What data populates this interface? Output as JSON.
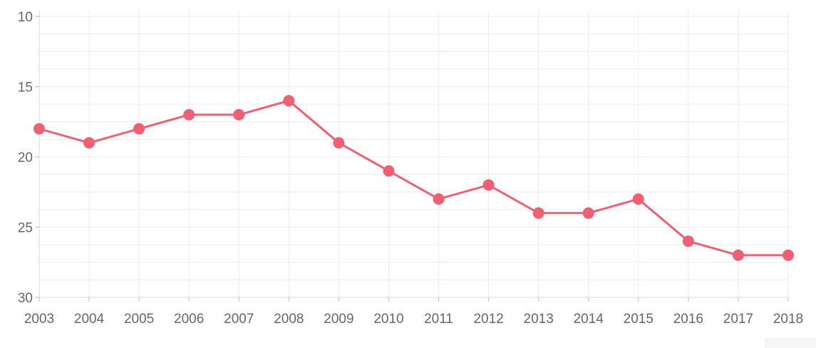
{
  "chart_data": {
    "type": "line",
    "x": [
      "2003",
      "2004",
      "2005",
      "2006",
      "2007",
      "2008",
      "2009",
      "2010",
      "2011",
      "2012",
      "2013",
      "2014",
      "2015",
      "2016",
      "2017",
      "2018"
    ],
    "series": [
      {
        "values": [
          18,
          19,
          18,
          17,
          17,
          16,
          19,
          21,
          23,
          22,
          24,
          24,
          23,
          26,
          27,
          27
        ]
      }
    ],
    "y_ticks": [
      "10",
      "15",
      "20",
      "25",
      "30"
    ],
    "ylim": [
      10,
      30
    ],
    "y_inverted": true,
    "grid": true,
    "line_color": "#ee6174",
    "title": "",
    "xlabel": "",
    "ylabel": ""
  }
}
